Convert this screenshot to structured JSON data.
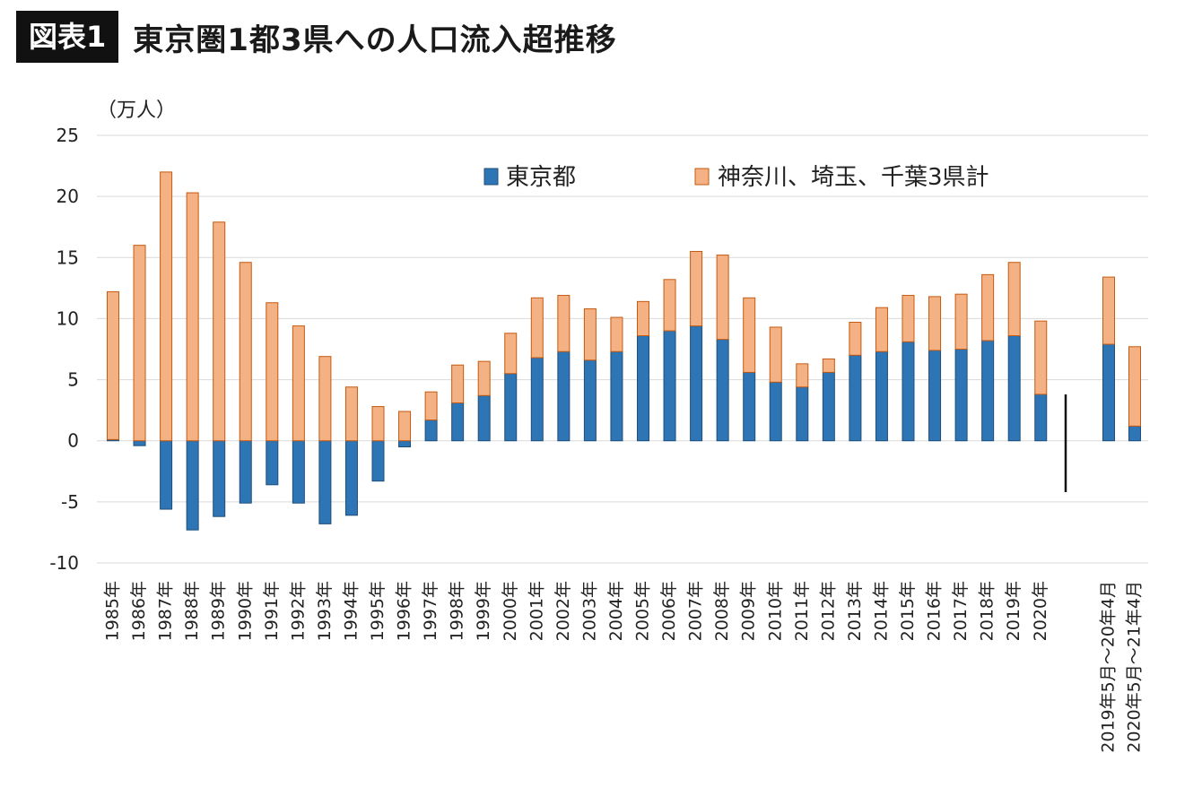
{
  "header": {
    "badge": "図表1",
    "title": "東京圏1都3県への人口流入超推移"
  },
  "chart_data": {
    "type": "bar",
    "stacked": true,
    "unit_label": "（万人）",
    "ylim": [
      -10,
      25
    ],
    "yticks": [
      -10,
      -5,
      0,
      5,
      10,
      15,
      20,
      25
    ],
    "grid": true,
    "legend_position": "top-right",
    "categories": [
      "1985年",
      "1986年",
      "1987年",
      "1988年",
      "1989年",
      "1990年",
      "1991年",
      "1992年",
      "1993年",
      "1994年",
      "1995年",
      "1996年",
      "1997年",
      "1998年",
      "1999年",
      "2000年",
      "2001年",
      "2002年",
      "2003年",
      "2004年",
      "2005年",
      "2006年",
      "2007年",
      "2008年",
      "2009年",
      "2010年",
      "2011年",
      "2012年",
      "2013年",
      "2014年",
      "2015年",
      "2016年",
      "2017年",
      "2018年",
      "2019年",
      "2020年"
    ],
    "extra_categories": [
      "2019年5月～20年4月",
      "2020年5月～21年4月"
    ],
    "series": [
      {
        "name": "東京都",
        "color": "#2e75b6",
        "edge": "#1f4e79",
        "values": [
          0.1,
          -0.4,
          -5.6,
          -7.3,
          -6.2,
          -5.1,
          -3.6,
          -5.1,
          -6.8,
          -6.1,
          -3.3,
          -0.5,
          1.7,
          3.1,
          3.7,
          5.5,
          6.8,
          7.3,
          6.6,
          7.3,
          8.6,
          9.0,
          9.4,
          8.3,
          5.6,
          4.8,
          4.4,
          5.6,
          7.0,
          7.3,
          8.1,
          7.4,
          7.5,
          8.2,
          8.6,
          3.8
        ],
        "extra_values": [
          7.9,
          1.2
        ]
      },
      {
        "name": "神奈川、埼玉、千葉3県計",
        "color": "#f4b183",
        "edge": "#c55a11",
        "values": [
          12.1,
          16.0,
          22.0,
          20.3,
          17.9,
          14.6,
          11.3,
          9.4,
          6.9,
          4.4,
          2.8,
          2.4,
          2.3,
          3.1,
          2.8,
          3.3,
          4.9,
          4.6,
          4.2,
          2.8,
          2.8,
          4.2,
          6.1,
          6.9,
          6.1,
          4.5,
          1.9,
          1.1,
          2.7,
          3.6,
          3.8,
          4.4,
          4.5,
          5.4,
          6.0,
          6.0
        ],
        "extra_values": [
          5.5,
          6.5
        ]
      }
    ]
  }
}
